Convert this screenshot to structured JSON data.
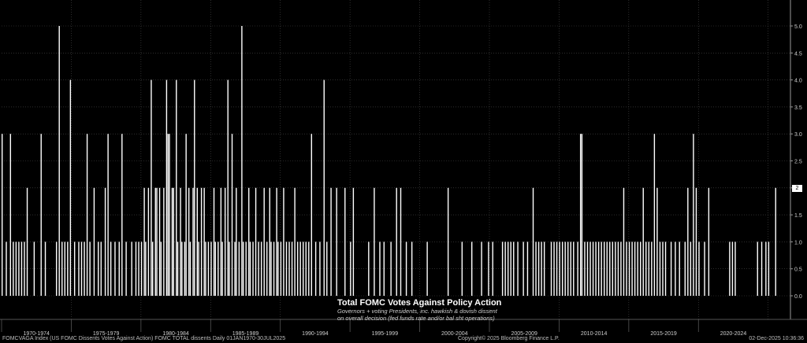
{
  "chart_data": {
    "type": "bar",
    "title": "Total FOMC Votes Against Policy Action",
    "subtitle_line1": "Governors + voting Presidents, inc. hawkish & dovish dissent",
    "subtitle_line2": "on overall decision (fed funds rate and/or bal sht operations)",
    "ylim": [
      0,
      5.5
    ],
    "y_ticks": [
      "0.0",
      "0.5",
      "1.0",
      "1.5",
      "2.0",
      "2.5",
      "3.0",
      "3.5",
      "4.0",
      "4.5",
      "5.0"
    ],
    "x_range": [
      1970.0,
      2026.6
    ],
    "x_period_labels": [
      {
        "label": "1970-1974",
        "start": 1970,
        "end": 1975
      },
      {
        "label": "1975-1979",
        "start": 1975,
        "end": 1980
      },
      {
        "label": "1980-1984",
        "start": 1980,
        "end": 1985
      },
      {
        "label": "1985-1989",
        "start": 1985,
        "end": 1990
      },
      {
        "label": "1990-1994",
        "start": 1990,
        "end": 1995
      },
      {
        "label": "1995-1999",
        "start": 1995,
        "end": 2000
      },
      {
        "label": "2000-2004",
        "start": 2000,
        "end": 2005
      },
      {
        "label": "2005-2009",
        "start": 2005,
        "end": 2010
      },
      {
        "label": "2010-2014",
        "start": 2010,
        "end": 2015
      },
      {
        "label": "2015-2019",
        "start": 2015,
        "end": 2020
      },
      {
        "label": "2020-2024",
        "start": 2020,
        "end": 2025
      }
    ],
    "grid": true,
    "last_value": "2",
    "dissents": [
      [
        1970.0,
        3
      ],
      [
        1970.3,
        1
      ],
      [
        1970.6,
        3
      ],
      [
        1970.8,
        1
      ],
      [
        1971.0,
        1
      ],
      [
        1971.2,
        1
      ],
      [
        1971.4,
        1
      ],
      [
        1971.6,
        1
      ],
      [
        1971.8,
        2
      ],
      [
        1972.3,
        1
      ],
      [
        1972.8,
        3
      ],
      [
        1973.1,
        1
      ],
      [
        1973.9,
        1
      ],
      [
        1974.1,
        5
      ],
      [
        1974.3,
        1
      ],
      [
        1974.5,
        1
      ],
      [
        1974.7,
        1
      ],
      [
        1974.9,
        4
      ],
      [
        1975.2,
        1
      ],
      [
        1975.5,
        1
      ],
      [
        1975.7,
        1
      ],
      [
        1975.9,
        1
      ],
      [
        1976.1,
        3
      ],
      [
        1976.3,
        1
      ],
      [
        1976.6,
        2
      ],
      [
        1976.9,
        1
      ],
      [
        1977.1,
        1
      ],
      [
        1977.4,
        2
      ],
      [
        1977.6,
        3
      ],
      [
        1977.8,
        1
      ],
      [
        1978.1,
        1
      ],
      [
        1978.4,
        1
      ],
      [
        1978.6,
        3
      ],
      [
        1978.9,
        1
      ],
      [
        1979.3,
        1
      ],
      [
        1979.6,
        1
      ],
      [
        1979.8,
        1
      ],
      [
        1980.0,
        1
      ],
      [
        1980.2,
        2
      ],
      [
        1980.3,
        1
      ],
      [
        1980.5,
        2
      ],
      [
        1980.7,
        4
      ],
      [
        1980.8,
        1
      ],
      [
        1981.0,
        2
      ],
      [
        1981.1,
        2
      ],
      [
        1981.3,
        2
      ],
      [
        1981.4,
        1
      ],
      [
        1981.6,
        2
      ],
      [
        1981.8,
        4
      ],
      [
        1981.9,
        3
      ],
      [
        1982.0,
        3
      ],
      [
        1982.2,
        2
      ],
      [
        1982.3,
        2
      ],
      [
        1982.5,
        4
      ],
      [
        1982.6,
        1
      ],
      [
        1982.8,
        2
      ],
      [
        1982.9,
        1
      ],
      [
        1983.1,
        1
      ],
      [
        1983.2,
        3
      ],
      [
        1983.4,
        2
      ],
      [
        1983.5,
        1
      ],
      [
        1983.7,
        2
      ],
      [
        1983.8,
        4
      ],
      [
        1984.0,
        2
      ],
      [
        1984.1,
        1
      ],
      [
        1984.3,
        2
      ],
      [
        1984.5,
        2
      ],
      [
        1984.6,
        1
      ],
      [
        1984.8,
        1
      ],
      [
        1985.0,
        1
      ],
      [
        1985.2,
        2
      ],
      [
        1985.3,
        1
      ],
      [
        1985.5,
        1
      ],
      [
        1985.7,
        2
      ],
      [
        1985.8,
        1
      ],
      [
        1986.0,
        2
      ],
      [
        1986.2,
        4
      ],
      [
        1986.3,
        1
      ],
      [
        1986.5,
        3
      ],
      [
        1986.7,
        1
      ],
      [
        1986.8,
        2
      ],
      [
        1987.0,
        1
      ],
      [
        1987.2,
        5
      ],
      [
        1987.3,
        1
      ],
      [
        1987.5,
        1
      ],
      [
        1987.7,
        2
      ],
      [
        1987.8,
        1
      ],
      [
        1988.0,
        1
      ],
      [
        1988.2,
        2
      ],
      [
        1988.4,
        1
      ],
      [
        1988.6,
        1
      ],
      [
        1988.8,
        2
      ],
      [
        1989.0,
        1
      ],
      [
        1989.2,
        2
      ],
      [
        1989.3,
        1
      ],
      [
        1989.5,
        1
      ],
      [
        1989.7,
        2
      ],
      [
        1989.8,
        1
      ],
      [
        1990.0,
        1
      ],
      [
        1990.2,
        2
      ],
      [
        1990.4,
        1
      ],
      [
        1990.6,
        1
      ],
      [
        1990.8,
        1
      ],
      [
        1991.0,
        2
      ],
      [
        1991.2,
        1
      ],
      [
        1991.4,
        1
      ],
      [
        1991.6,
        1
      ],
      [
        1991.8,
        1
      ],
      [
        1992.0,
        1
      ],
      [
        1992.2,
        3
      ],
      [
        1992.5,
        1
      ],
      [
        1992.8,
        1
      ],
      [
        1993.1,
        4
      ],
      [
        1993.3,
        1
      ],
      [
        1993.6,
        2
      ],
      [
        1994.0,
        2
      ],
      [
        1994.6,
        2
      ],
      [
        1995.0,
        1
      ],
      [
        1995.2,
        2
      ],
      [
        1996.3,
        1
      ],
      [
        1996.7,
        2
      ],
      [
        1997.1,
        1
      ],
      [
        1997.4,
        1
      ],
      [
        1997.9,
        1
      ],
      [
        1998.3,
        2
      ],
      [
        1998.6,
        2
      ],
      [
        1999.0,
        1
      ],
      [
        1999.4,
        1
      ],
      [
        2000.5,
        1
      ],
      [
        2002.0,
        2
      ],
      [
        2003.0,
        1
      ],
      [
        2003.7,
        1
      ],
      [
        2004.4,
        1
      ],
      [
        2004.9,
        1
      ],
      [
        2005.2,
        1
      ],
      [
        2005.9,
        1
      ],
      [
        2006.1,
        1
      ],
      [
        2006.3,
        1
      ],
      [
        2006.5,
        1
      ],
      [
        2006.7,
        1
      ],
      [
        2007.0,
        1
      ],
      [
        2007.4,
        1
      ],
      [
        2007.7,
        1
      ],
      [
        2008.1,
        2
      ],
      [
        2008.3,
        1
      ],
      [
        2008.5,
        1
      ],
      [
        2008.7,
        1
      ],
      [
        2008.9,
        1
      ],
      [
        2009.4,
        1
      ],
      [
        2009.6,
        1
      ],
      [
        2009.8,
        1
      ],
      [
        2010.0,
        1
      ],
      [
        2010.2,
        1
      ],
      [
        2010.4,
        1
      ],
      [
        2010.6,
        1
      ],
      [
        2010.8,
        1
      ],
      [
        2011.0,
        1
      ],
      [
        2011.3,
        1
      ],
      [
        2011.5,
        3
      ],
      [
        2011.6,
        3
      ],
      [
        2011.8,
        1
      ],
      [
        2012.0,
        1
      ],
      [
        2012.2,
        1
      ],
      [
        2012.4,
        1
      ],
      [
        2012.6,
        1
      ],
      [
        2012.8,
        1
      ],
      [
        2013.0,
        1
      ],
      [
        2013.2,
        1
      ],
      [
        2013.4,
        1
      ],
      [
        2013.6,
        1
      ],
      [
        2013.8,
        1
      ],
      [
        2014.0,
        1
      ],
      [
        2014.2,
        1
      ],
      [
        2014.4,
        1
      ],
      [
        2014.6,
        2
      ],
      [
        2014.8,
        1
      ],
      [
        2015.0,
        1
      ],
      [
        2015.2,
        1
      ],
      [
        2015.4,
        1
      ],
      [
        2015.6,
        1
      ],
      [
        2015.8,
        1
      ],
      [
        2016.0,
        2
      ],
      [
        2016.2,
        1
      ],
      [
        2016.4,
        1
      ],
      [
        2016.6,
        1
      ],
      [
        2016.8,
        3
      ],
      [
        2017.0,
        2
      ],
      [
        2017.2,
        1
      ],
      [
        2017.4,
        1
      ],
      [
        2017.6,
        1
      ],
      [
        2018.0,
        1
      ],
      [
        2018.3,
        1
      ],
      [
        2018.6,
        1
      ],
      [
        2019.0,
        1
      ],
      [
        2019.2,
        2
      ],
      [
        2019.4,
        1
      ],
      [
        2019.6,
        3
      ],
      [
        2019.8,
        2
      ],
      [
        2020.0,
        1
      ],
      [
        2020.4,
        1
      ],
      [
        2020.7,
        2
      ],
      [
        2022.2,
        1
      ],
      [
        2022.4,
        1
      ],
      [
        2022.6,
        1
      ],
      [
        2024.2,
        1
      ],
      [
        2024.5,
        1
      ],
      [
        2024.8,
        1
      ],
      [
        2025.0,
        1
      ],
      [
        2025.5,
        2
      ]
    ]
  },
  "footer": {
    "left": "FOMCVAGA Index (US FOMC Dissents Votes Against Action) FOMC TOTAL dissents Daily 01JAN1970-30JUL2025",
    "middle": "Copyright© 2025 Bloomberg Finance L.P.",
    "right": "02-Dec-2025 10:36:36"
  }
}
